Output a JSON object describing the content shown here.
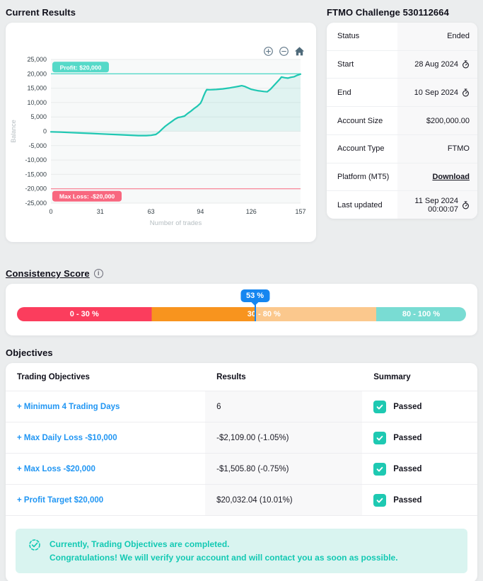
{
  "current_results": {
    "title": "Current Results"
  },
  "chart_data": {
    "type": "area",
    "xlabel": "Number of trades",
    "ylabel": "Balance",
    "xlim": [
      0,
      157
    ],
    "ylim": [
      -25000,
      25000
    ],
    "x_ticks": [
      0,
      31,
      63,
      94,
      126,
      157
    ],
    "y_tick_step": 5000,
    "grid": true,
    "line_color": "#1fc7b2",
    "fill_color": "rgba(31,199,178,0.10)",
    "plot_bg": "#f7f9f9",
    "grid_color": "#e8ebeb",
    "profit_target": {
      "value": 20000,
      "label": "Profit: $20,000",
      "color": "#55d9c8"
    },
    "max_loss": {
      "value": -20000,
      "label": "Max Loss: -$20,000",
      "line_color": "#f98fa0",
      "badge_color": "#f8677f"
    },
    "series": [
      {
        "name": "Balance",
        "points": [
          [
            0,
            -200
          ],
          [
            6,
            -300
          ],
          [
            12,
            -450
          ],
          [
            18,
            -600
          ],
          [
            25,
            -750
          ],
          [
            31,
            -900
          ],
          [
            37,
            -1050
          ],
          [
            43,
            -1200
          ],
          [
            49,
            -1350
          ],
          [
            55,
            -1500
          ],
          [
            60,
            -1500
          ],
          [
            63,
            -1400
          ],
          [
            66,
            -1100
          ],
          [
            68,
            -300
          ],
          [
            70,
            800
          ],
          [
            72,
            1800
          ],
          [
            74,
            2600
          ],
          [
            76,
            3400
          ],
          [
            78,
            4200
          ],
          [
            80,
            4800
          ],
          [
            82,
            5000
          ],
          [
            84,
            5300
          ],
          [
            86,
            6200
          ],
          [
            88,
            7000
          ],
          [
            90,
            7900
          ],
          [
            92,
            8700
          ],
          [
            94,
            9700
          ],
          [
            95,
            10800
          ],
          [
            96,
            12200
          ],
          [
            97,
            13500
          ],
          [
            98,
            14500
          ],
          [
            100,
            14450
          ],
          [
            102,
            14500
          ],
          [
            104,
            14550
          ],
          [
            106,
            14650
          ],
          [
            108,
            14750
          ],
          [
            110,
            14900
          ],
          [
            112,
            15050
          ],
          [
            114,
            15250
          ],
          [
            116,
            15450
          ],
          [
            118,
            15650
          ],
          [
            120,
            15850
          ],
          [
            122,
            15600
          ],
          [
            124,
            15100
          ],
          [
            126,
            14600
          ],
          [
            128,
            14350
          ],
          [
            130,
            14150
          ],
          [
            132,
            14000
          ],
          [
            134,
            13850
          ],
          [
            136,
            13750
          ],
          [
            138,
            14600
          ],
          [
            140,
            15800
          ],
          [
            142,
            17000
          ],
          [
            144,
            18200
          ],
          [
            145,
            18900
          ],
          [
            147,
            18650
          ],
          [
            149,
            18500
          ],
          [
            151,
            18800
          ],
          [
            153,
            19000
          ],
          [
            155,
            19500
          ],
          [
            157,
            19900
          ]
        ]
      }
    ],
    "toolbar": [
      "zoom-in",
      "zoom-out",
      "reset-axes"
    ]
  },
  "challenge": {
    "title": "FTMO Challenge 530112664",
    "rows": [
      {
        "label": "Status",
        "value": "Ended",
        "icon": ""
      },
      {
        "label": "Start",
        "value": "28 Aug 2024",
        "icon": "clock"
      },
      {
        "label": "End",
        "value": "10 Sep 2024",
        "icon": "clock"
      },
      {
        "label": "Account Size",
        "value": "$200,000.00",
        "icon": ""
      },
      {
        "label": "Account Type",
        "value": "FTMO",
        "icon": ""
      },
      {
        "label": "Platform (MT5)",
        "value": "Download",
        "icon": "",
        "link": true
      },
      {
        "label": "Last updated",
        "value": "11 Sep 2024 00:00:07",
        "icon": "clock"
      }
    ]
  },
  "consistency": {
    "title": "Consistency Score",
    "score_percent": 53,
    "score_label": "53 %",
    "marker_color": "#1586f0",
    "segments": [
      {
        "label": "0 - 30 %",
        "from": 0,
        "to": 30,
        "color": "#fb3d5d",
        "label_at": 15
      },
      {
        "label": "30 - 80 %",
        "from": 30,
        "to": 80,
        "color": "#f8941e",
        "split_at": 53,
        "color_after": "#fbc88d",
        "label_at": 55
      },
      {
        "label": "80 - 100 %",
        "from": 80,
        "to": 100,
        "color": "#79dcd3",
        "label_at": 90
      }
    ]
  },
  "objectives": {
    "title": "Objectives",
    "headers": [
      "Trading Objectives",
      "Results",
      "Summary"
    ],
    "rows": [
      {
        "name": "+ Minimum 4 Trading Days",
        "result": "6",
        "summary": "Passed"
      },
      {
        "name": "+ Max Daily Loss -$10,000",
        "result": "-$2,109.00 (-1.05%)",
        "summary": "Passed"
      },
      {
        "name": "+ Max Loss -$20,000",
        "result": "-$1,505.80 (-0.75%)",
        "summary": "Passed"
      },
      {
        "name": "+ Profit Target $20,000",
        "result": "$20,032.04 (10.01%)",
        "summary": "Passed"
      }
    ],
    "message": {
      "line1": "Currently, Trading Objectives are completed.",
      "line2": "Congratulations! We will verify your account and will contact you as soon as possible."
    }
  }
}
